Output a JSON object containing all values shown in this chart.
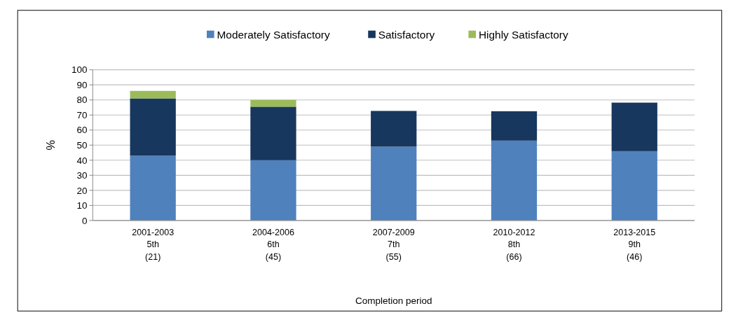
{
  "chart_data": {
    "type": "bar",
    "stacked": true,
    "xlabel": "Completion period",
    "ylabel": "%",
    "categories": [
      "2001-2003\n5th\n(21)",
      "2004-2006\n6th\n(45)",
      "2007-2009\n7th\n(55)",
      "2010-2012\n8th\n(66)",
      "2013-2015\n9th\n(46)"
    ],
    "series": [
      {
        "name": "Moderately Satisfactory",
        "color": "#4f81bd",
        "values": [
          43,
          40,
          49,
          53,
          46
        ]
      },
      {
        "name": "Satisfactory",
        "color": "#17375e",
        "values": [
          38,
          35.5,
          23.7,
          19.5,
          32.2
        ]
      },
      {
        "name": "Highly Satisfactory",
        "color": "#9bbb59",
        "values": [
          5,
          4.5,
          0,
          0,
          0
        ]
      }
    ],
    "ylim": [
      0,
      100
    ],
    "yticks": [
      0,
      10,
      20,
      30,
      40,
      50,
      60,
      70,
      80,
      90,
      100
    ],
    "grid": "y",
    "legend": "top"
  }
}
